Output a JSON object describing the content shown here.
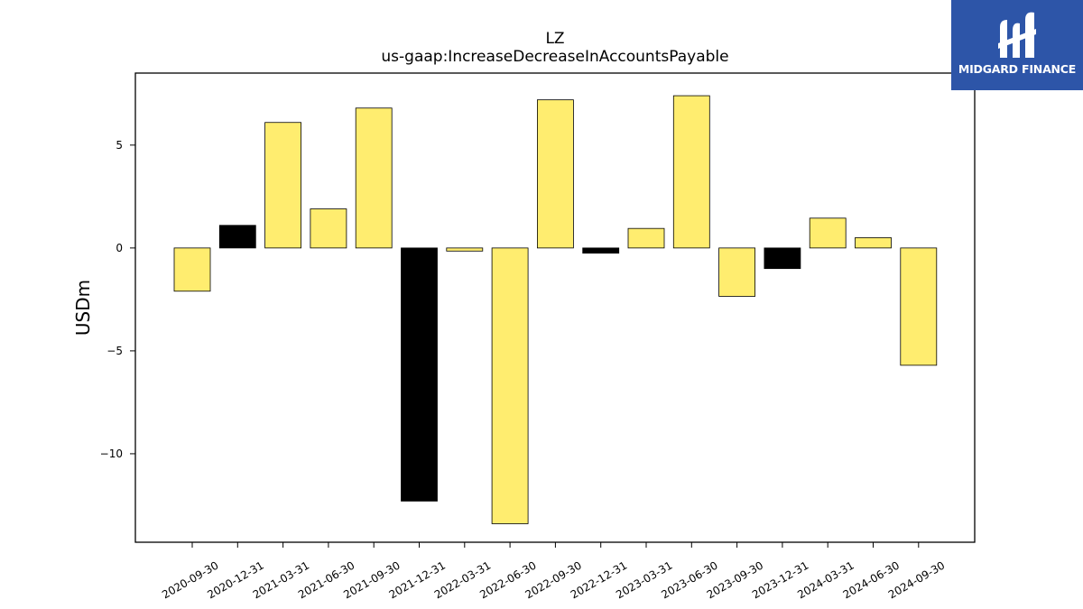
{
  "logo": {
    "text": "MIDGARD FINANCE",
    "background": "#2d55a8"
  },
  "chart_data": {
    "type": "bar",
    "title": "LZ",
    "subtitle": "us-gaap:IncreaseDecreaseInAccountsPayable",
    "xlabel": "",
    "ylabel": "USDm",
    "categories": [
      "2020-09-30",
      "2020-12-31",
      "2021-03-31",
      "2021-06-30",
      "2021-09-30",
      "2021-12-31",
      "2022-03-31",
      "2022-06-30",
      "2022-09-30",
      "2022-12-31",
      "2023-03-31",
      "2023-06-30",
      "2023-09-30",
      "2023-12-31",
      "2024-03-31",
      "2024-06-30",
      "2024-09-30"
    ],
    "values": [
      -2.1,
      1.1,
      6.1,
      1.9,
      6.8,
      -12.3,
      -0.15,
      -13.4,
      7.2,
      -0.25,
      0.95,
      7.4,
      -2.35,
      -1.0,
      1.45,
      0.5,
      -5.7
    ],
    "bar_colors": [
      "#ffed6f",
      "#000000",
      "#ffed6f",
      "#ffed6f",
      "#ffed6f",
      "#000000",
      "#ffed6f",
      "#ffed6f",
      "#ffed6f",
      "#000000",
      "#ffed6f",
      "#ffed6f",
      "#ffed6f",
      "#000000",
      "#ffed6f",
      "#ffed6f",
      "#ffed6f"
    ],
    "yticks": [
      5,
      0,
      -5,
      -10
    ],
    "ytick_labels": [
      "5",
      "0",
      "−5",
      "−10"
    ],
    "ylim": [
      -14.3,
      8.5
    ],
    "grid": false,
    "legend": "none"
  }
}
